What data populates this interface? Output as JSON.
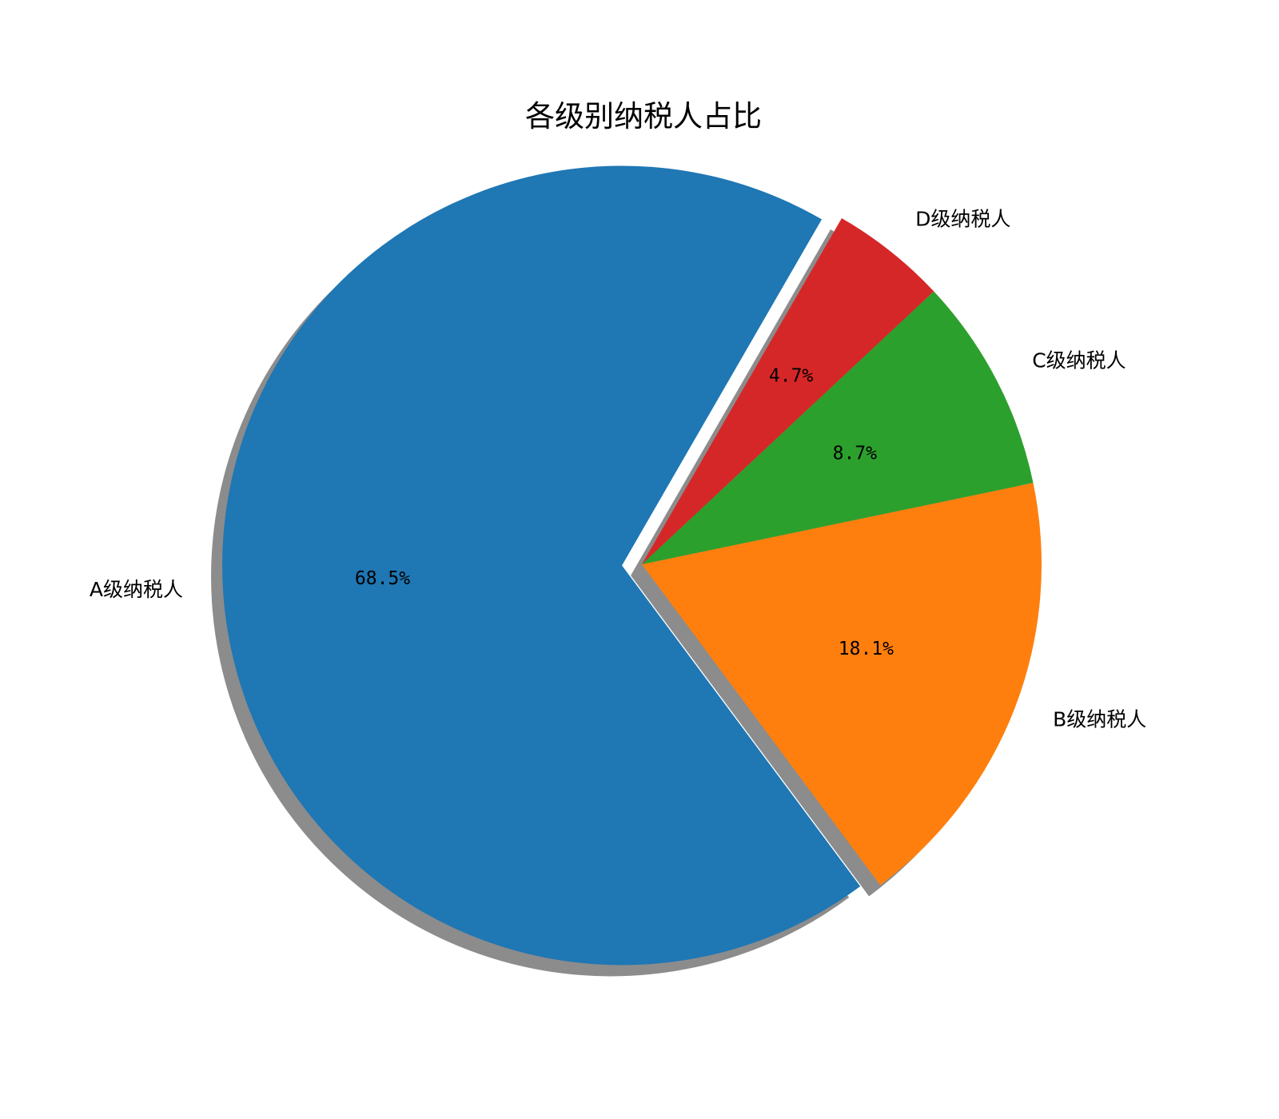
{
  "chart_data": {
    "type": "pie",
    "title": "各级别纳税人占比",
    "categories": [
      "A级纳税人",
      "B级纳税人",
      "C级纳税人",
      "D级纳税人"
    ],
    "values": [
      68.5,
      18.1,
      8.7,
      4.7
    ],
    "percent_labels": [
      "68.5%",
      "18.1%",
      "8.7%",
      "4.7%"
    ],
    "colors": [
      "#1f77b4",
      "#ff7f0e",
      "#2ca02c",
      "#d62728"
    ],
    "exploded": [
      "A级纳税人"
    ],
    "shadow": true,
    "start_angle_deg": 60,
    "direction": "counterclockwise"
  }
}
